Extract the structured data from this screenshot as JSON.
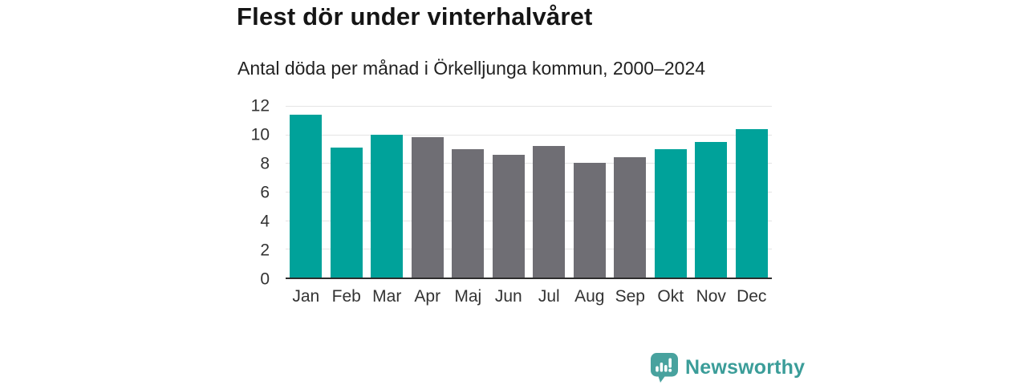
{
  "header": {
    "title": "Flest dör under vinterhalvåret",
    "subtitle": "Antal döda per månad i Örkelljunga kommun, 2000–2024"
  },
  "palette": {
    "teal": "#00a29a",
    "gray": "#6f6e74"
  },
  "chart_data": {
    "type": "bar",
    "title": "Flest dör under vinterhalvåret",
    "subtitle": "Antal döda per månad i Örkelljunga kommun, 2000–2024",
    "categories": [
      "Jan",
      "Feb",
      "Mar",
      "Apr",
      "Maj",
      "Jun",
      "Jul",
      "Aug",
      "Sep",
      "Okt",
      "Nov",
      "Dec"
    ],
    "values": [
      11.4,
      9.1,
      10.0,
      9.8,
      9.0,
      8.6,
      9.2,
      8.0,
      8.4,
      9.0,
      9.5,
      10.4
    ],
    "bar_colors": [
      "teal",
      "teal",
      "teal",
      "gray",
      "gray",
      "gray",
      "gray",
      "gray",
      "gray",
      "teal",
      "teal",
      "teal"
    ],
    "xlabel": "",
    "ylabel": "",
    "ylim": [
      0,
      12
    ],
    "yticks": [
      0,
      2,
      4,
      6,
      8,
      10,
      12
    ],
    "grid": "horizontal",
    "legend": "none"
  },
  "footer": {
    "brand": "Newsworthy",
    "brand_color": "#3b9d99",
    "icon_color": "#48a29e"
  }
}
